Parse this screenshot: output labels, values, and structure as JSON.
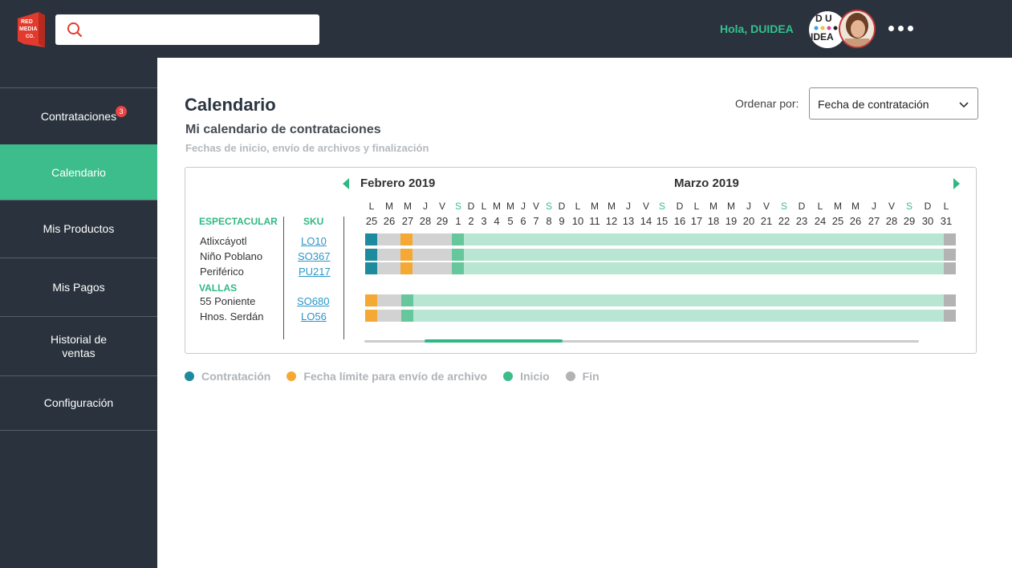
{
  "topbar": {
    "logo_text": "RED MEDIA CO.",
    "search_placeholder": "",
    "greeting": "Hola, DUIDEA",
    "brand_logo_text": "DUIDEA"
  },
  "sidebar": {
    "items": [
      {
        "label": "Contrataciones",
        "badge": "3"
      },
      {
        "label": "Calendario"
      },
      {
        "label": "Mis Productos"
      },
      {
        "label": "Mis Pagos"
      },
      {
        "label": "Historial de ventas"
      },
      {
        "label": "Configuración"
      }
    ]
  },
  "main": {
    "title": "Calendario",
    "subtitle": "Mi calendario de contrataciones",
    "caption": "Fechas de inicio, envío de archivos y finalización",
    "sort_label": "Ordenar por:",
    "sort_value": "Fecha de contratación"
  },
  "calendar": {
    "months": [
      "Febrero 2019",
      "Marzo 2019"
    ],
    "col_spectacular": "ESPECTACULAR",
    "col_sku": "SKU",
    "group_vallas": "VALLAS",
    "days": [
      {
        "w": "L",
        "n": "25"
      },
      {
        "w": "M",
        "n": "26"
      },
      {
        "w": "M",
        "n": "27"
      },
      {
        "w": "J",
        "n": "28"
      },
      {
        "w": "V",
        "n": "29"
      },
      {
        "w": "S",
        "n": "1"
      },
      {
        "w": "D",
        "n": "2"
      },
      {
        "w": "L",
        "n": "3"
      },
      {
        "w": "M",
        "n": "4"
      },
      {
        "w": "M",
        "n": "5"
      },
      {
        "w": "J",
        "n": "6"
      },
      {
        "w": "V",
        "n": "7"
      },
      {
        "w": "S",
        "n": "8"
      },
      {
        "w": "D",
        "n": "9"
      },
      {
        "w": "L",
        "n": "10"
      },
      {
        "w": "M",
        "n": "11"
      },
      {
        "w": "M",
        "n": "12"
      },
      {
        "w": "J",
        "n": "13"
      },
      {
        "w": "V",
        "n": "14"
      },
      {
        "w": "S",
        "n": "15"
      },
      {
        "w": "D",
        "n": "16"
      },
      {
        "w": "L",
        "n": "17"
      },
      {
        "w": "M",
        "n": "18"
      },
      {
        "w": "M",
        "n": "19"
      },
      {
        "w": "J",
        "n": "20"
      },
      {
        "w": "V",
        "n": "21"
      },
      {
        "w": "S",
        "n": "22"
      },
      {
        "w": "D",
        "n": "23"
      },
      {
        "w": "L",
        "n": "24"
      },
      {
        "w": "M",
        "n": "25"
      },
      {
        "w": "M",
        "n": "26"
      },
      {
        "w": "J",
        "n": "27"
      },
      {
        "w": "V",
        "n": "28"
      },
      {
        "w": "S",
        "n": "29"
      },
      {
        "w": "D",
        "n": "30"
      },
      {
        "w": "L",
        "n": "31"
      }
    ],
    "rows": [
      {
        "name": "Atlixcáyotl",
        "sku": "LO10"
      },
      {
        "name": "Niño Poblano",
        "sku": "SO367"
      },
      {
        "name": "Periférico",
        "sku": "PU217"
      },
      {
        "name": "55 Poniente",
        "sku": "SO680"
      },
      {
        "name": "Hnos. Serdán",
        "sku": "LO56"
      }
    ]
  },
  "legend": [
    {
      "label": "Contratación",
      "color": "#1e8a9e"
    },
    {
      "label": "Fecha límite para envío de archivo",
      "color": "#f5a833"
    },
    {
      "label": "Inicio",
      "color": "#3dbd8b"
    },
    {
      "label": "Fin",
      "color": "#b3b3b3"
    }
  ],
  "colors": {
    "accent": "#3dbd8b",
    "contract": "#1e8a9e",
    "deadline": "#f5a833",
    "start": "#66c69c",
    "running": "#b9e6d2",
    "gap": "#d2d2d2",
    "end": "#b3b3b3",
    "sidebar": "#2a333d"
  }
}
